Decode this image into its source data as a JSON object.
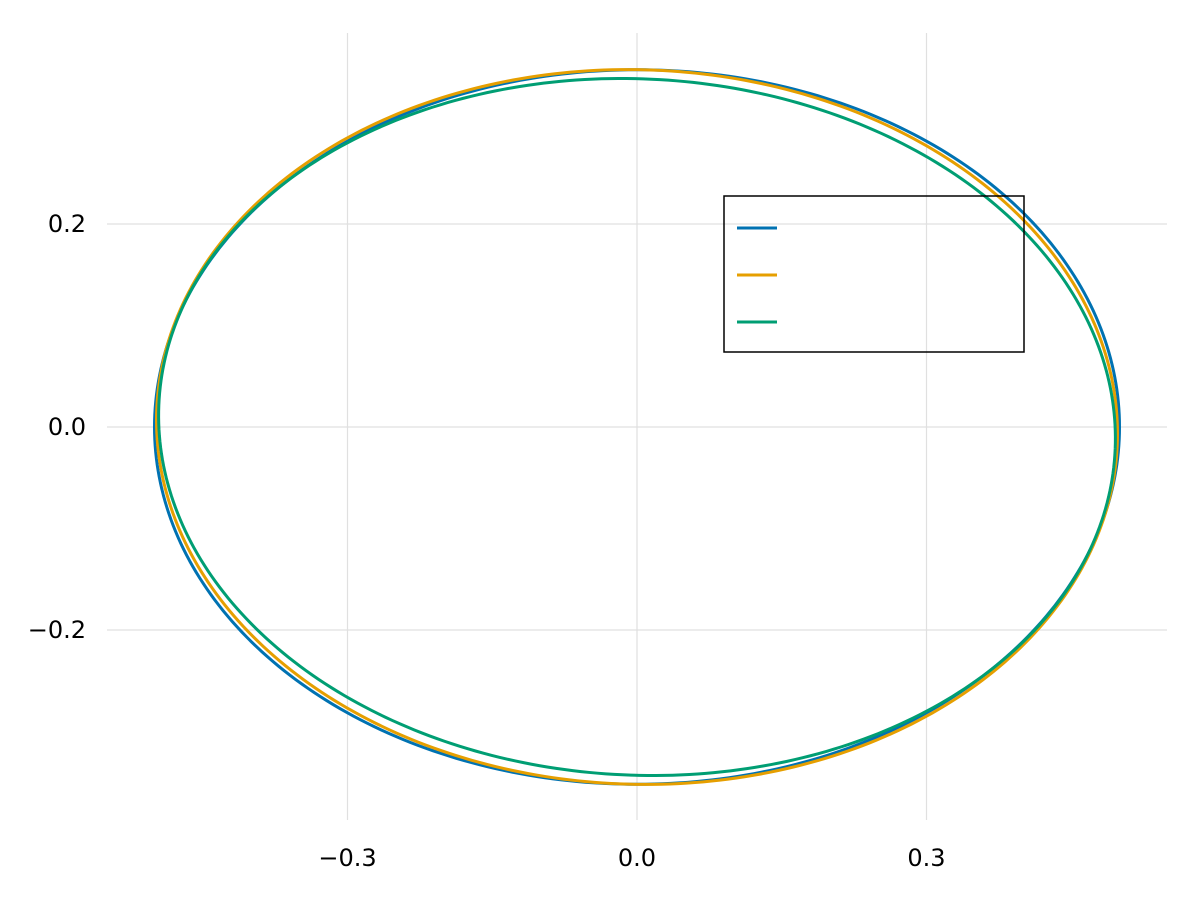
{
  "chart_data": {
    "type": "line",
    "title": "",
    "xlabel": "",
    "ylabel": "",
    "xlim": [
      -0.5,
      0.55
    ],
    "ylim": [
      -0.385,
      0.385
    ],
    "xticks": [
      -0.3,
      0.0,
      0.3
    ],
    "yticks": [
      -0.2,
      0.0,
      0.2
    ],
    "xtick_labels": [
      "−0.3",
      "0.0",
      "0.3"
    ],
    "ytick_labels": [
      "−0.2",
      "0.0",
      "0.2"
    ],
    "grid": true,
    "legend_position": "top-right",
    "series": [
      {
        "color": "#0072b2",
        "center": [
          0.0,
          0.0
        ],
        "semi_axis_x": 0.5,
        "semi_axis_y": 0.352,
        "tilt_deg": 0.0
      },
      {
        "color": "#e69f00",
        "center": [
          0.0,
          0.0
        ],
        "semi_axis_x": 0.498,
        "semi_axis_y": 0.352,
        "tilt_deg": -1.5
      },
      {
        "color": "#009e73",
        "center": [
          0.0,
          0.0
        ],
        "semi_axis_x": 0.496,
        "semi_axis_y": 0.343,
        "tilt_deg": -2.5
      }
    ]
  }
}
